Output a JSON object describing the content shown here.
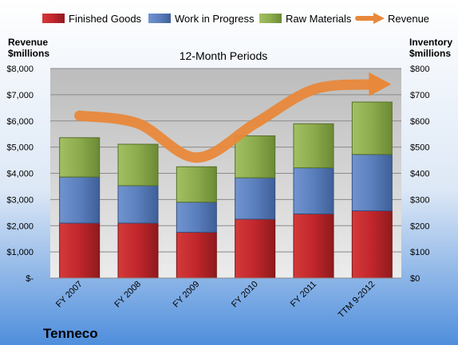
{
  "chart_data": {
    "type": "bar",
    "stacked": true,
    "title": "12-Month Periods",
    "company": "Tenneco",
    "categories": [
      "FY 2007",
      "FY 2008",
      "FY 2009",
      "FY 2010",
      "FY 2011",
      "TTM 9-2012"
    ],
    "series": [
      {
        "name": "Finished Goods",
        "axis": "right",
        "color": "#c0262b",
        "values": [
          210,
          210,
          175,
          225,
          245,
          257
        ]
      },
      {
        "name": "Work in Progress",
        "axis": "right",
        "color": "#5a7fbd",
        "values": [
          176,
          143,
          115,
          158,
          176,
          215
        ]
      },
      {
        "name": "Raw Materials",
        "axis": "right",
        "color": "#8cab4c",
        "values": [
          150,
          158,
          135,
          160,
          168,
          200
        ]
      },
      {
        "name": "Revenue",
        "axis": "left",
        "type": "line",
        "color": "#e8883a",
        "values": [
          6200,
          5900,
          4600,
          5900,
          7200,
          7400
        ]
      }
    ],
    "y_left": {
      "label_line1": "Revenue",
      "label_line2": "$millions",
      "range": [
        0,
        8000
      ],
      "ticks": [
        "$-",
        "$1,000",
        "$2,000",
        "$3,000",
        "$4,000",
        "$5,000",
        "$6,000",
        "$7,000",
        "$8,000"
      ]
    },
    "y_right": {
      "label_line1": "Inventory",
      "label_line2": "$millions",
      "range": [
        0,
        800
      ],
      "ticks": [
        "$0",
        "$100",
        "$200",
        "$300",
        "$400",
        "$500",
        "$600",
        "$700",
        "$800"
      ]
    },
    "grid": true,
    "legend": "top"
  }
}
